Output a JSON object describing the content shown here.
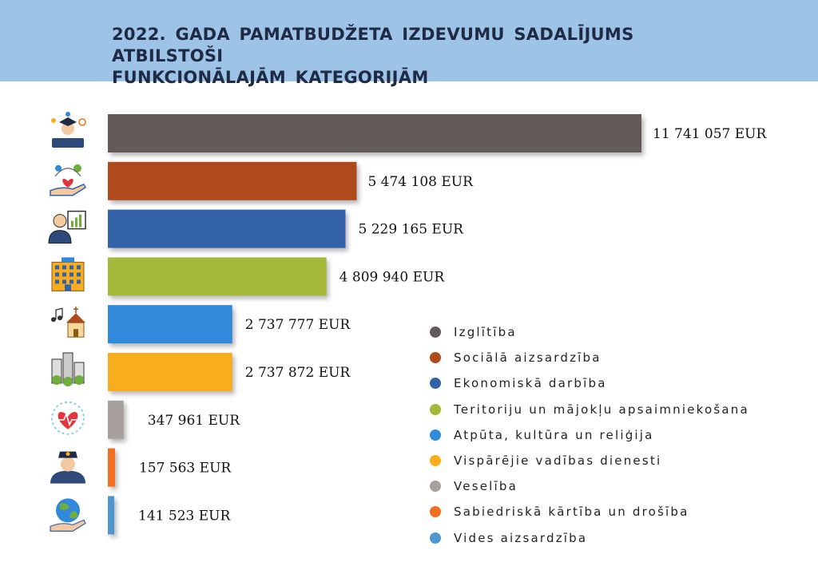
{
  "header": {
    "title_line1": "2022. GADA PAMATBUDŽETA IZDEVUMU SADALĪJUMS ATBILSTOŠI",
    "title_line2": "FUNKCIONĀLAJĀM KATEGORIJĀM",
    "background": "#9dc3e6"
  },
  "chart_data": {
    "type": "bar",
    "orientation": "horizontal",
    "title": "2022. GADA PAMATBUDŽETA IZDEVUMU SADALĪJUMS ATBILSTOŠI FUNKCIONĀLAJĀM KATEGORIJĀM",
    "categories": [
      "Izglītība",
      "Sociālā aizsardzība",
      "Ekonomiskā darbība",
      "Teritoriju un mājokļu apsaimniekošana",
      "Atpūta, kultūra un reliģija",
      "Vispārējie vadības dienesti",
      "Veselība",
      "Sabiedriskā kārtība un drošība",
      "Vides aizsardzība"
    ],
    "values": [
      11741057,
      5474108,
      5229165,
      4809940,
      2737777,
      2737872,
      347961,
      157563,
      141523
    ],
    "value_labels": [
      "11 741 057 EUR",
      "5 474 108 EUR",
      "5 229 165 EUR",
      "4 809 940  EUR",
      "2 737 777  EUR",
      "2 737 872  EUR",
      "347 961  EUR",
      "157 563  EUR",
      "141 523  EUR"
    ],
    "colors": [
      "#645a59",
      "#ae4a1c",
      "#3462a9",
      "#a5b83a",
      "#3189db",
      "#f7ad1d",
      "#a7a09d",
      "#f26e21",
      "#4f95cf"
    ],
    "legend_position": "right",
    "grid": false,
    "icons": [
      "graduate-education-icon",
      "social-care-hands-icon",
      "business-presenter-chart-icon",
      "apartment-building-icon",
      "music-church-icon",
      "city-buildings-icon",
      "health-heart-icon",
      "police-officer-icon",
      "earth-hand-icon"
    ]
  },
  "legend": {
    "items": [
      {
        "label": "Izglītība",
        "color": "#645a59"
      },
      {
        "label": "Sociālā aizsardzība",
        "color": "#ae4a1c"
      },
      {
        "label": "Ekonomiskā darbība",
        "color": "#3462a9"
      },
      {
        "label": "Teritoriju un mājokļu apsaimniekošana",
        "color": "#a5b83a"
      },
      {
        "label": "Atpūta, kultūra un reliģija",
        "color": "#3189db"
      },
      {
        "label": "Vispārējie vadības dienesti",
        "color": "#f7ad1d"
      },
      {
        "label": "Veselība",
        "color": "#a7a09d"
      },
      {
        "label": "Sabiedriskā kārtība un drošība",
        "color": "#f26e21"
      },
      {
        "label": "Vides aizsardzība",
        "color": "#4f95cf"
      }
    ]
  }
}
